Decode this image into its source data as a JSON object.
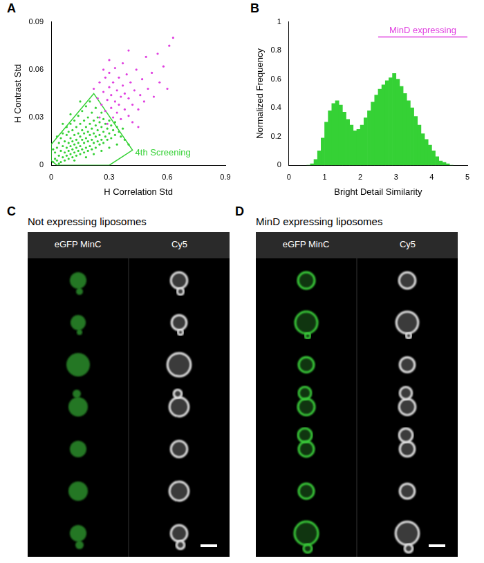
{
  "chart_data": [
    {
      "panel": "A",
      "type": "scatter",
      "x_label": "H Correlation Std",
      "y_label": "H Contrast Std",
      "xlim": [
        0,
        0.9
      ],
      "ylim": [
        0,
        0.09
      ],
      "xticks": [
        0,
        0.3,
        0.6,
        0.9
      ],
      "yticks": [
        0,
        0.03,
        0.06,
        0.09
      ],
      "grid": false,
      "series": [
        {
          "color": "#35d135",
          "values": [
            [
              0.01,
              0.002
            ],
            [
              0.02,
              0.004
            ],
            [
              0.02,
              0.008
            ],
            [
              0.03,
              0.003
            ],
            [
              0.03,
              0.011
            ],
            [
              0.04,
              0.006
            ],
            [
              0.04,
              0.014
            ],
            [
              0.05,
              0.002
            ],
            [
              0.05,
              0.009
            ],
            [
              0.05,
              0.017
            ],
            [
              0.06,
              0.005
            ],
            [
              0.06,
              0.012
            ],
            [
              0.06,
              0.02
            ],
            [
              0.07,
              0.003
            ],
            [
              0.07,
              0.008
            ],
            [
              0.07,
              0.015
            ],
            [
              0.08,
              0.006
            ],
            [
              0.08,
              0.011
            ],
            [
              0.08,
              0.019
            ],
            [
              0.08,
              0.024
            ],
            [
              0.09,
              0.004
            ],
            [
              0.09,
              0.009
            ],
            [
              0.09,
              0.014
            ],
            [
              0.09,
              0.021
            ],
            [
              0.1,
              0.007
            ],
            [
              0.1,
              0.012
            ],
            [
              0.1,
              0.017
            ],
            [
              0.1,
              0.026
            ],
            [
              0.11,
              0.005
            ],
            [
              0.11,
              0.01
            ],
            [
              0.11,
              0.015
            ],
            [
              0.11,
              0.022
            ],
            [
              0.12,
              0.008
            ],
            [
              0.12,
              0.013
            ],
            [
              0.12,
              0.019
            ],
            [
              0.12,
              0.028
            ],
            [
              0.13,
              0.006
            ],
            [
              0.13,
              0.011
            ],
            [
              0.13,
              0.016
            ],
            [
              0.13,
              0.024
            ],
            [
              0.14,
              0.009
            ],
            [
              0.14,
              0.014
            ],
            [
              0.14,
              0.02
            ],
            [
              0.14,
              0.031
            ],
            [
              0.15,
              0.007
            ],
            [
              0.15,
              0.012
            ],
            [
              0.15,
              0.018
            ],
            [
              0.15,
              0.026
            ],
            [
              0.16,
              0.01
            ],
            [
              0.16,
              0.016
            ],
            [
              0.16,
              0.022
            ],
            [
              0.16,
              0.034
            ],
            [
              0.17,
              0.008
            ],
            [
              0.17,
              0.014
            ],
            [
              0.17,
              0.02
            ],
            [
              0.17,
              0.028
            ],
            [
              0.18,
              0.011
            ],
            [
              0.18,
              0.017
            ],
            [
              0.18,
              0.024
            ],
            [
              0.18,
              0.037
            ],
            [
              0.19,
              0.009
            ],
            [
              0.19,
              0.015
            ],
            [
              0.19,
              0.021
            ],
            [
              0.19,
              0.03
            ],
            [
              0.2,
              0.012
            ],
            [
              0.2,
              0.019
            ],
            [
              0.2,
              0.026
            ],
            [
              0.2,
              0.04
            ],
            [
              0.21,
              0.01
            ],
            [
              0.21,
              0.016
            ],
            [
              0.21,
              0.023
            ],
            [
              0.21,
              0.033
            ],
            [
              0.22,
              0.014
            ],
            [
              0.22,
              0.02
            ],
            [
              0.22,
              0.028
            ],
            [
              0.23,
              0.011
            ],
            [
              0.23,
              0.018
            ],
            [
              0.23,
              0.025
            ],
            [
              0.23,
              0.036
            ],
            [
              0.24,
              0.015
            ],
            [
              0.24,
              0.022
            ],
            [
              0.24,
              0.03
            ],
            [
              0.25,
              0.013
            ],
            [
              0.25,
              0.019
            ],
            [
              0.25,
              0.027
            ],
            [
              0.26,
              0.016
            ],
            [
              0.26,
              0.024
            ],
            [
              0.26,
              0.033
            ],
            [
              0.27,
              0.014
            ],
            [
              0.27,
              0.021
            ],
            [
              0.27,
              0.029
            ],
            [
              0.28,
              0.018
            ],
            [
              0.28,
              0.026
            ],
            [
              0.29,
              0.016
            ],
            [
              0.29,
              0.023
            ],
            [
              0.3,
              0.02
            ],
            [
              0.3,
              0.028
            ],
            [
              0.31,
              0.017
            ],
            [
              0.31,
              0.025
            ],
            [
              0.32,
              0.022
            ],
            [
              0.33,
              0.019
            ],
            [
              0.33,
              0.027
            ],
            [
              0.34,
              0.024
            ],
            [
              0.35,
              0.021
            ],
            [
              0.36,
              0.018
            ],
            [
              0.37,
              0.023
            ],
            [
              0.38,
              0.016
            ],
            [
              0.4,
              0.013
            ],
            [
              0.04,
              0.001
            ],
            [
              0.12,
              0.003
            ],
            [
              0.18,
              0.005
            ],
            [
              0.22,
              0.007
            ],
            [
              0.26,
              0.009
            ],
            [
              0.3,
              0.011
            ],
            [
              0.34,
              0.013
            ],
            [
              0.15,
              0.04
            ],
            [
              0.1,
              0.032
            ],
            [
              0.06,
              0.026
            ],
            [
              0.03,
              0.018
            ],
            [
              0.01,
              0.01
            ]
          ]
        },
        {
          "color": "#e040e0",
          "values": [
            [
              0.22,
              0.048
            ],
            [
              0.24,
              0.042
            ],
            [
              0.25,
              0.052
            ],
            [
              0.26,
              0.038
            ],
            [
              0.27,
              0.046
            ],
            [
              0.28,
              0.055
            ],
            [
              0.28,
              0.034
            ],
            [
              0.29,
              0.041
            ],
            [
              0.3,
              0.049
            ],
            [
              0.3,
              0.058
            ],
            [
              0.31,
              0.036
            ],
            [
              0.31,
              0.044
            ],
            [
              0.32,
              0.052
            ],
            [
              0.32,
              0.03
            ],
            [
              0.33,
              0.04
            ],
            [
              0.33,
              0.061
            ],
            [
              0.34,
              0.047
            ],
            [
              0.34,
              0.033
            ],
            [
              0.35,
              0.055
            ],
            [
              0.35,
              0.038
            ],
            [
              0.36,
              0.043
            ],
            [
              0.36,
              0.029
            ],
            [
              0.37,
              0.05
            ],
            [
              0.37,
              0.064
            ],
            [
              0.38,
              0.035
            ],
            [
              0.38,
              0.045
            ],
            [
              0.39,
              0.057
            ],
            [
              0.4,
              0.031
            ],
            [
              0.4,
              0.042
            ],
            [
              0.41,
              0.052
            ],
            [
              0.42,
              0.027
            ],
            [
              0.42,
              0.038
            ],
            [
              0.43,
              0.047
            ],
            [
              0.44,
              0.06
            ],
            [
              0.45,
              0.035
            ],
            [
              0.46,
              0.044
            ],
            [
              0.47,
              0.054
            ],
            [
              0.48,
              0.04
            ],
            [
              0.49,
              0.068
            ],
            [
              0.5,
              0.048
            ],
            [
              0.52,
              0.058
            ],
            [
              0.53,
              0.043
            ],
            [
              0.55,
              0.07
            ],
            [
              0.56,
              0.052
            ],
            [
              0.58,
              0.062
            ],
            [
              0.6,
              0.048
            ],
            [
              0.61,
              0.075
            ],
            [
              0.63,
              0.08
            ],
            [
              0.25,
              0.03
            ],
            [
              0.29,
              0.026
            ],
            [
              0.27,
              0.06
            ],
            [
              0.45,
              0.024
            ],
            [
              0.3,
              0.066
            ],
            [
              0.4,
              0.072
            ]
          ]
        }
      ],
      "annotations": [
        {
          "text": "4th Screening",
          "color": "#35d135",
          "x": [
            0,
            0.22,
            0.42,
            0.3,
            0.03,
            0
          ],
          "y": [
            0.013,
            0.045,
            0.0095,
            0,
            0,
            0.003
          ]
        }
      ]
    },
    {
      "panel": "B",
      "type": "histogram",
      "x_label": "Bright Detail Similarity",
      "y_label": "Normalized Frequency",
      "xlim": [
        0,
        5
      ],
      "ylim": [
        0,
        1
      ],
      "xticks": [
        0,
        1,
        2,
        3,
        4,
        5
      ],
      "yticks": [
        0,
        0.2,
        0.4,
        0.6,
        0.8,
        1
      ],
      "grid": false,
      "color": "#35d135",
      "bins": [
        0.5,
        0.6,
        0.7,
        0.8,
        0.9,
        1.0,
        1.1,
        1.2,
        1.3,
        1.4,
        1.5,
        1.6,
        1.7,
        1.8,
        1.9,
        2.0,
        2.1,
        2.2,
        2.3,
        2.4,
        2.5,
        2.6,
        2.7,
        2.8,
        2.9,
        3.0,
        3.1,
        3.2,
        3.3,
        3.4,
        3.5,
        3.6,
        3.7,
        3.8,
        3.9,
        4.0,
        4.1,
        4.2,
        4.3,
        4.4,
        4.5,
        4.6
      ],
      "values": [
        0,
        0.01,
        0.04,
        0.1,
        0.19,
        0.3,
        0.38,
        0.43,
        0.45,
        0.42,
        0.37,
        0.32,
        0.28,
        0.24,
        0.25,
        0.28,
        0.33,
        0.38,
        0.44,
        0.49,
        0.53,
        0.56,
        0.59,
        0.61,
        0.64,
        0.6,
        0.55,
        0.5,
        0.45,
        0.4,
        0.34,
        0.28,
        0.22,
        0.18,
        0.14,
        0.1,
        0.06,
        0.03,
        0.02,
        0.01,
        0
      ],
      "annotations": [
        {
          "text": "MinD expressing",
          "color": "#e040e0",
          "x": [
            2.5,
            5
          ]
        }
      ]
    }
  ],
  "image_panels": [
    {
      "panel": "C",
      "title": "Not expressing liposomes",
      "columns": [
        "eGFP MinC",
        "Cy5"
      ]
    },
    {
      "panel": "D",
      "title": "MinD expressing liposomes",
      "columns": [
        "eGFP MinC",
        "Cy5"
      ]
    }
  ]
}
